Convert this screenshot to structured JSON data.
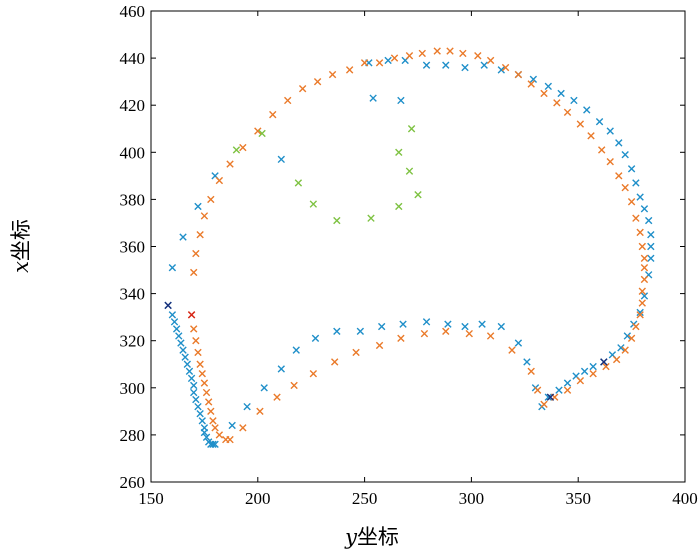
{
  "chart_data": {
    "type": "scatter",
    "title": "",
    "xlabel": {
      "var": "y",
      "text": "坐标"
    },
    "ylabel": {
      "var": "x",
      "text": "坐标"
    },
    "xlim": [
      150,
      400
    ],
    "ylim": [
      260,
      460
    ],
    "xticks": [
      150,
      200,
      250,
      300,
      350,
      400
    ],
    "yticks": [
      260,
      280,
      300,
      320,
      340,
      360,
      380,
      400,
      420,
      440,
      460
    ],
    "grid": false,
    "legend": "none",
    "marker": "x",
    "series": [
      {
        "color": "#1f8fc9",
        "x": [
          158,
          160,
          161,
          162,
          163,
          164,
          165,
          166,
          167,
          168,
          169,
          170,
          170,
          171,
          172,
          173,
          174,
          175,
          175,
          176,
          177,
          178,
          179,
          180,
          188,
          195,
          203,
          211,
          218,
          227,
          237,
          248,
          258,
          268,
          279,
          289,
          297,
          305,
          314,
          322,
          326,
          330,
          333,
          336,
          341,
          345,
          349,
          353,
          357,
          362,
          366,
          370,
          373,
          376,
          379,
          381,
          383,
          384,
          384,
          384,
          383,
          381,
          379,
          377,
          375,
          372,
          369,
          365,
          360,
          354,
          348,
          342,
          336,
          329,
          322,
          314,
          306,
          297,
          288,
          279,
          269,
          261,
          252,
          180,
          172,
          165,
          160,
          211,
          254,
          267
        ],
        "y": [
          335,
          331,
          328,
          325,
          322,
          319,
          316,
          313,
          310,
          307,
          304,
          301,
          298,
          295,
          292,
          289,
          286,
          283,
          281,
          279,
          277,
          276,
          276,
          276,
          284,
          292,
          300,
          308,
          316,
          321,
          324,
          324,
          326,
          327,
          328,
          327,
          326,
          327,
          326,
          319,
          311,
          300,
          292,
          296,
          299,
          302,
          305,
          307,
          309,
          311,
          314,
          317,
          322,
          327,
          332,
          339,
          348,
          355,
          360,
          365,
          371,
          376,
          381,
          387,
          393,
          399,
          404,
          409,
          413,
          418,
          422,
          425,
          428,
          431,
          433,
          435,
          437,
          436,
          437,
          437,
          439,
          439,
          438,
          390,
          377,
          364,
          351,
          397,
          423,
          422
        ]
      },
      {
        "color": "#ea7a2a",
        "x": [
          169,
          170,
          171,
          172,
          173,
          174,
          175,
          176,
          177,
          178,
          179,
          180,
          182,
          185,
          187,
          193,
          201,
          209,
          217,
          226,
          236,
          246,
          257,
          267,
          278,
          288,
          299,
          309,
          319,
          328,
          331,
          334,
          339,
          345,
          351,
          357,
          363,
          368,
          372,
          375,
          377,
          379,
          380,
          380,
          381,
          381,
          381,
          380,
          379,
          377,
          375,
          372,
          369,
          365,
          361,
          356,
          351,
          345,
          340,
          334,
          328,
          322,
          316,
          309,
          303,
          296,
          290,
          284,
          277,
          271,
          264,
          257,
          250,
          243,
          235,
          228,
          221,
          214,
          207,
          200,
          193,
          187,
          182,
          178,
          175,
          173,
          171,
          170
        ],
        "y": [
          331,
          325,
          320,
          315,
          310,
          306,
          302,
          298,
          294,
          290,
          286,
          283,
          280,
          278,
          278,
          283,
          290,
          296,
          301,
          306,
          311,
          315,
          318,
          321,
          323,
          324,
          323,
          322,
          316,
          307,
          299,
          293,
          296,
          299,
          303,
          306,
          309,
          312,
          316,
          321,
          326,
          331,
          336,
          341,
          346,
          351,
          355,
          360,
          366,
          372,
          379,
          385,
          390,
          396,
          401,
          407,
          412,
          417,
          421,
          425,
          429,
          433,
          436,
          439,
          441,
          442,
          443,
          443,
          442,
          441,
          440,
          438,
          438,
          435,
          433,
          430,
          427,
          422,
          416,
          409,
          402,
          395,
          388,
          380,
          373,
          365,
          357,
          349
        ]
      },
      {
        "color": "#7ec242",
        "x": [
          190,
          202,
          219,
          226,
          237,
          253,
          266,
          271,
          272,
          275,
          266
        ],
        "y": [
          401,
          408,
          387,
          378,
          371,
          372,
          377,
          392,
          410,
          382,
          400
        ]
      },
      {
        "color": "#1a2f7a",
        "x": [
          158,
          337,
          362
        ],
        "y": [
          335,
          296,
          311
        ]
      },
      {
        "color": "#d6261b",
        "x": [
          169
        ],
        "y": [
          331
        ]
      }
    ]
  }
}
